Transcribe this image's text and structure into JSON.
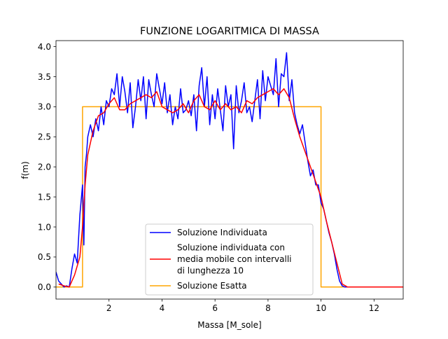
{
  "chart_data": {
    "type": "line",
    "title": "FUNZIONE LOGARITMICA DI MASSA",
    "xlabel": "Massa [M_sole]",
    "ylabel": "f(m)",
    "xlim": [
      0.0,
      13.1
    ],
    "ylim": [
      -0.2,
      4.1
    ],
    "xticks": [
      2,
      4,
      6,
      8,
      10,
      12
    ],
    "xtick_labels": [
      "2",
      "4",
      "6",
      "8",
      "10",
      "12"
    ],
    "yticks": [
      0.0,
      0.5,
      1.0,
      1.5,
      2.0,
      2.5,
      3.0,
      3.5,
      4.0
    ],
    "ytick_labels": [
      "0.0",
      "0.5",
      "1.0",
      "1.5",
      "2.0",
      "2.5",
      "3.0",
      "3.5",
      "4.0"
    ],
    "grid": false,
    "legend_position": "bottom-center",
    "series": [
      {
        "name": "Soluzione Individuata",
        "color": "#0000ff",
        "x": [
          0.0,
          0.1,
          0.2,
          0.3,
          0.4,
          0.5,
          0.6,
          0.7,
          0.8,
          0.9,
          1.0,
          1.05,
          1.1,
          1.15,
          1.2,
          1.3,
          1.4,
          1.5,
          1.6,
          1.7,
          1.8,
          1.9,
          2.0,
          2.1,
          2.2,
          2.3,
          2.4,
          2.5,
          2.6,
          2.7,
          2.8,
          2.9,
          3.0,
          3.1,
          3.2,
          3.3,
          3.4,
          3.5,
          3.6,
          3.7,
          3.8,
          3.9,
          4.0,
          4.1,
          4.2,
          4.3,
          4.4,
          4.5,
          4.6,
          4.7,
          4.8,
          4.9,
          5.0,
          5.1,
          5.2,
          5.3,
          5.4,
          5.5,
          5.6,
          5.7,
          5.8,
          5.9,
          6.0,
          6.1,
          6.2,
          6.3,
          6.4,
          6.5,
          6.6,
          6.7,
          6.8,
          6.9,
          7.0,
          7.1,
          7.2,
          7.3,
          7.4,
          7.5,
          7.6,
          7.7,
          7.8,
          7.9,
          8.0,
          8.1,
          8.2,
          8.3,
          8.4,
          8.5,
          8.6,
          8.7,
          8.8,
          8.9,
          9.0,
          9.1,
          9.2,
          9.3,
          9.4,
          9.5,
          9.6,
          9.7,
          9.8,
          9.9,
          10.0,
          10.1,
          10.2,
          10.3,
          10.4,
          10.5,
          10.6,
          10.7,
          10.8,
          10.9,
          11.0,
          11.5,
          12.0,
          12.5,
          13.1
        ],
        "y": [
          0.25,
          0.1,
          0.05,
          0.0,
          0.02,
          0.0,
          0.3,
          0.55,
          0.4,
          1.2,
          1.7,
          0.7,
          2.0,
          2.2,
          2.5,
          2.7,
          2.5,
          2.8,
          2.6,
          3.0,
          2.7,
          3.1,
          3.0,
          3.3,
          3.2,
          3.55,
          3.0,
          3.5,
          3.25,
          2.9,
          3.4,
          2.65,
          3.0,
          3.45,
          3.1,
          3.5,
          2.8,
          3.45,
          3.2,
          3.0,
          3.55,
          3.3,
          3.05,
          3.4,
          2.9,
          3.2,
          2.7,
          3.0,
          2.8,
          3.3,
          2.9,
          2.95,
          3.1,
          2.85,
          3.2,
          2.6,
          3.35,
          3.65,
          3.0,
          3.5,
          2.7,
          3.2,
          2.8,
          3.3,
          2.95,
          2.6,
          3.35,
          3.0,
          3.2,
          2.3,
          3.35,
          2.9,
          3.1,
          3.4,
          2.9,
          3.0,
          2.75,
          3.1,
          3.45,
          2.8,
          3.6,
          3.1,
          3.5,
          3.35,
          3.2,
          3.8,
          3.0,
          3.55,
          3.5,
          3.9,
          3.1,
          3.45,
          2.9,
          2.7,
          2.55,
          2.7,
          2.4,
          2.1,
          1.85,
          1.95,
          1.7,
          1.7,
          1.4,
          1.3,
          1.1,
          0.9,
          0.75,
          0.55,
          0.3,
          0.1,
          0.02,
          0.0,
          0.0,
          0.0,
          0.0,
          0.0,
          0.0
        ]
      },
      {
        "name": "Soluzione individuata con media mobile con intervalli di lunghezza 10",
        "color": "#ff0000",
        "x": [
          0.1,
          0.3,
          0.5,
          0.7,
          0.9,
          1.0,
          1.1,
          1.2,
          1.4,
          1.6,
          1.8,
          2.0,
          2.2,
          2.4,
          2.6,
          2.8,
          3.0,
          3.2,
          3.4,
          3.6,
          3.8,
          4.0,
          4.2,
          4.4,
          4.6,
          4.8,
          5.0,
          5.2,
          5.4,
          5.6,
          5.8,
          6.0,
          6.2,
          6.4,
          6.6,
          6.8,
          7.0,
          7.2,
          7.4,
          7.6,
          7.8,
          8.0,
          8.2,
          8.4,
          8.6,
          8.8,
          9.0,
          9.2,
          9.4,
          9.6,
          9.8,
          10.0,
          10.2,
          10.4,
          10.6,
          10.8,
          11.0,
          12.0,
          13.1
        ],
        "y": [
          0.05,
          0.02,
          0.0,
          0.2,
          0.5,
          1.0,
          1.7,
          2.2,
          2.6,
          2.85,
          2.9,
          3.05,
          3.15,
          2.95,
          2.95,
          3.05,
          3.1,
          3.15,
          3.2,
          3.15,
          3.25,
          3.0,
          2.95,
          2.9,
          2.95,
          3.05,
          2.9,
          3.1,
          3.2,
          3.0,
          2.95,
          3.1,
          2.95,
          3.05,
          2.95,
          3.0,
          2.9,
          3.1,
          3.05,
          3.15,
          3.2,
          3.25,
          3.3,
          3.2,
          3.3,
          3.15,
          2.8,
          2.5,
          2.25,
          2.0,
          1.75,
          1.5,
          1.1,
          0.75,
          0.4,
          0.05,
          0.0,
          0.0,
          0.0
        ]
      },
      {
        "name": "Soluzione Esatta",
        "color": "#ffa500",
        "x": [
          0.0,
          1.0,
          1.0,
          10.0,
          10.0,
          13.1
        ],
        "y": [
          0.0,
          0.0,
          3.0,
          3.0,
          0.0,
          0.0
        ]
      }
    ]
  },
  "legend": {
    "items": [
      {
        "lines": [
          "Soluzione Individuata"
        ],
        "color": "#0000ff"
      },
      {
        "lines": [
          "Soluzione individuata con",
          "media mobile con intervalli",
          "di lunghezza 10"
        ],
        "color": "#ff0000"
      },
      {
        "lines": [
          "Soluzione Esatta"
        ],
        "color": "#ffa500"
      }
    ]
  }
}
